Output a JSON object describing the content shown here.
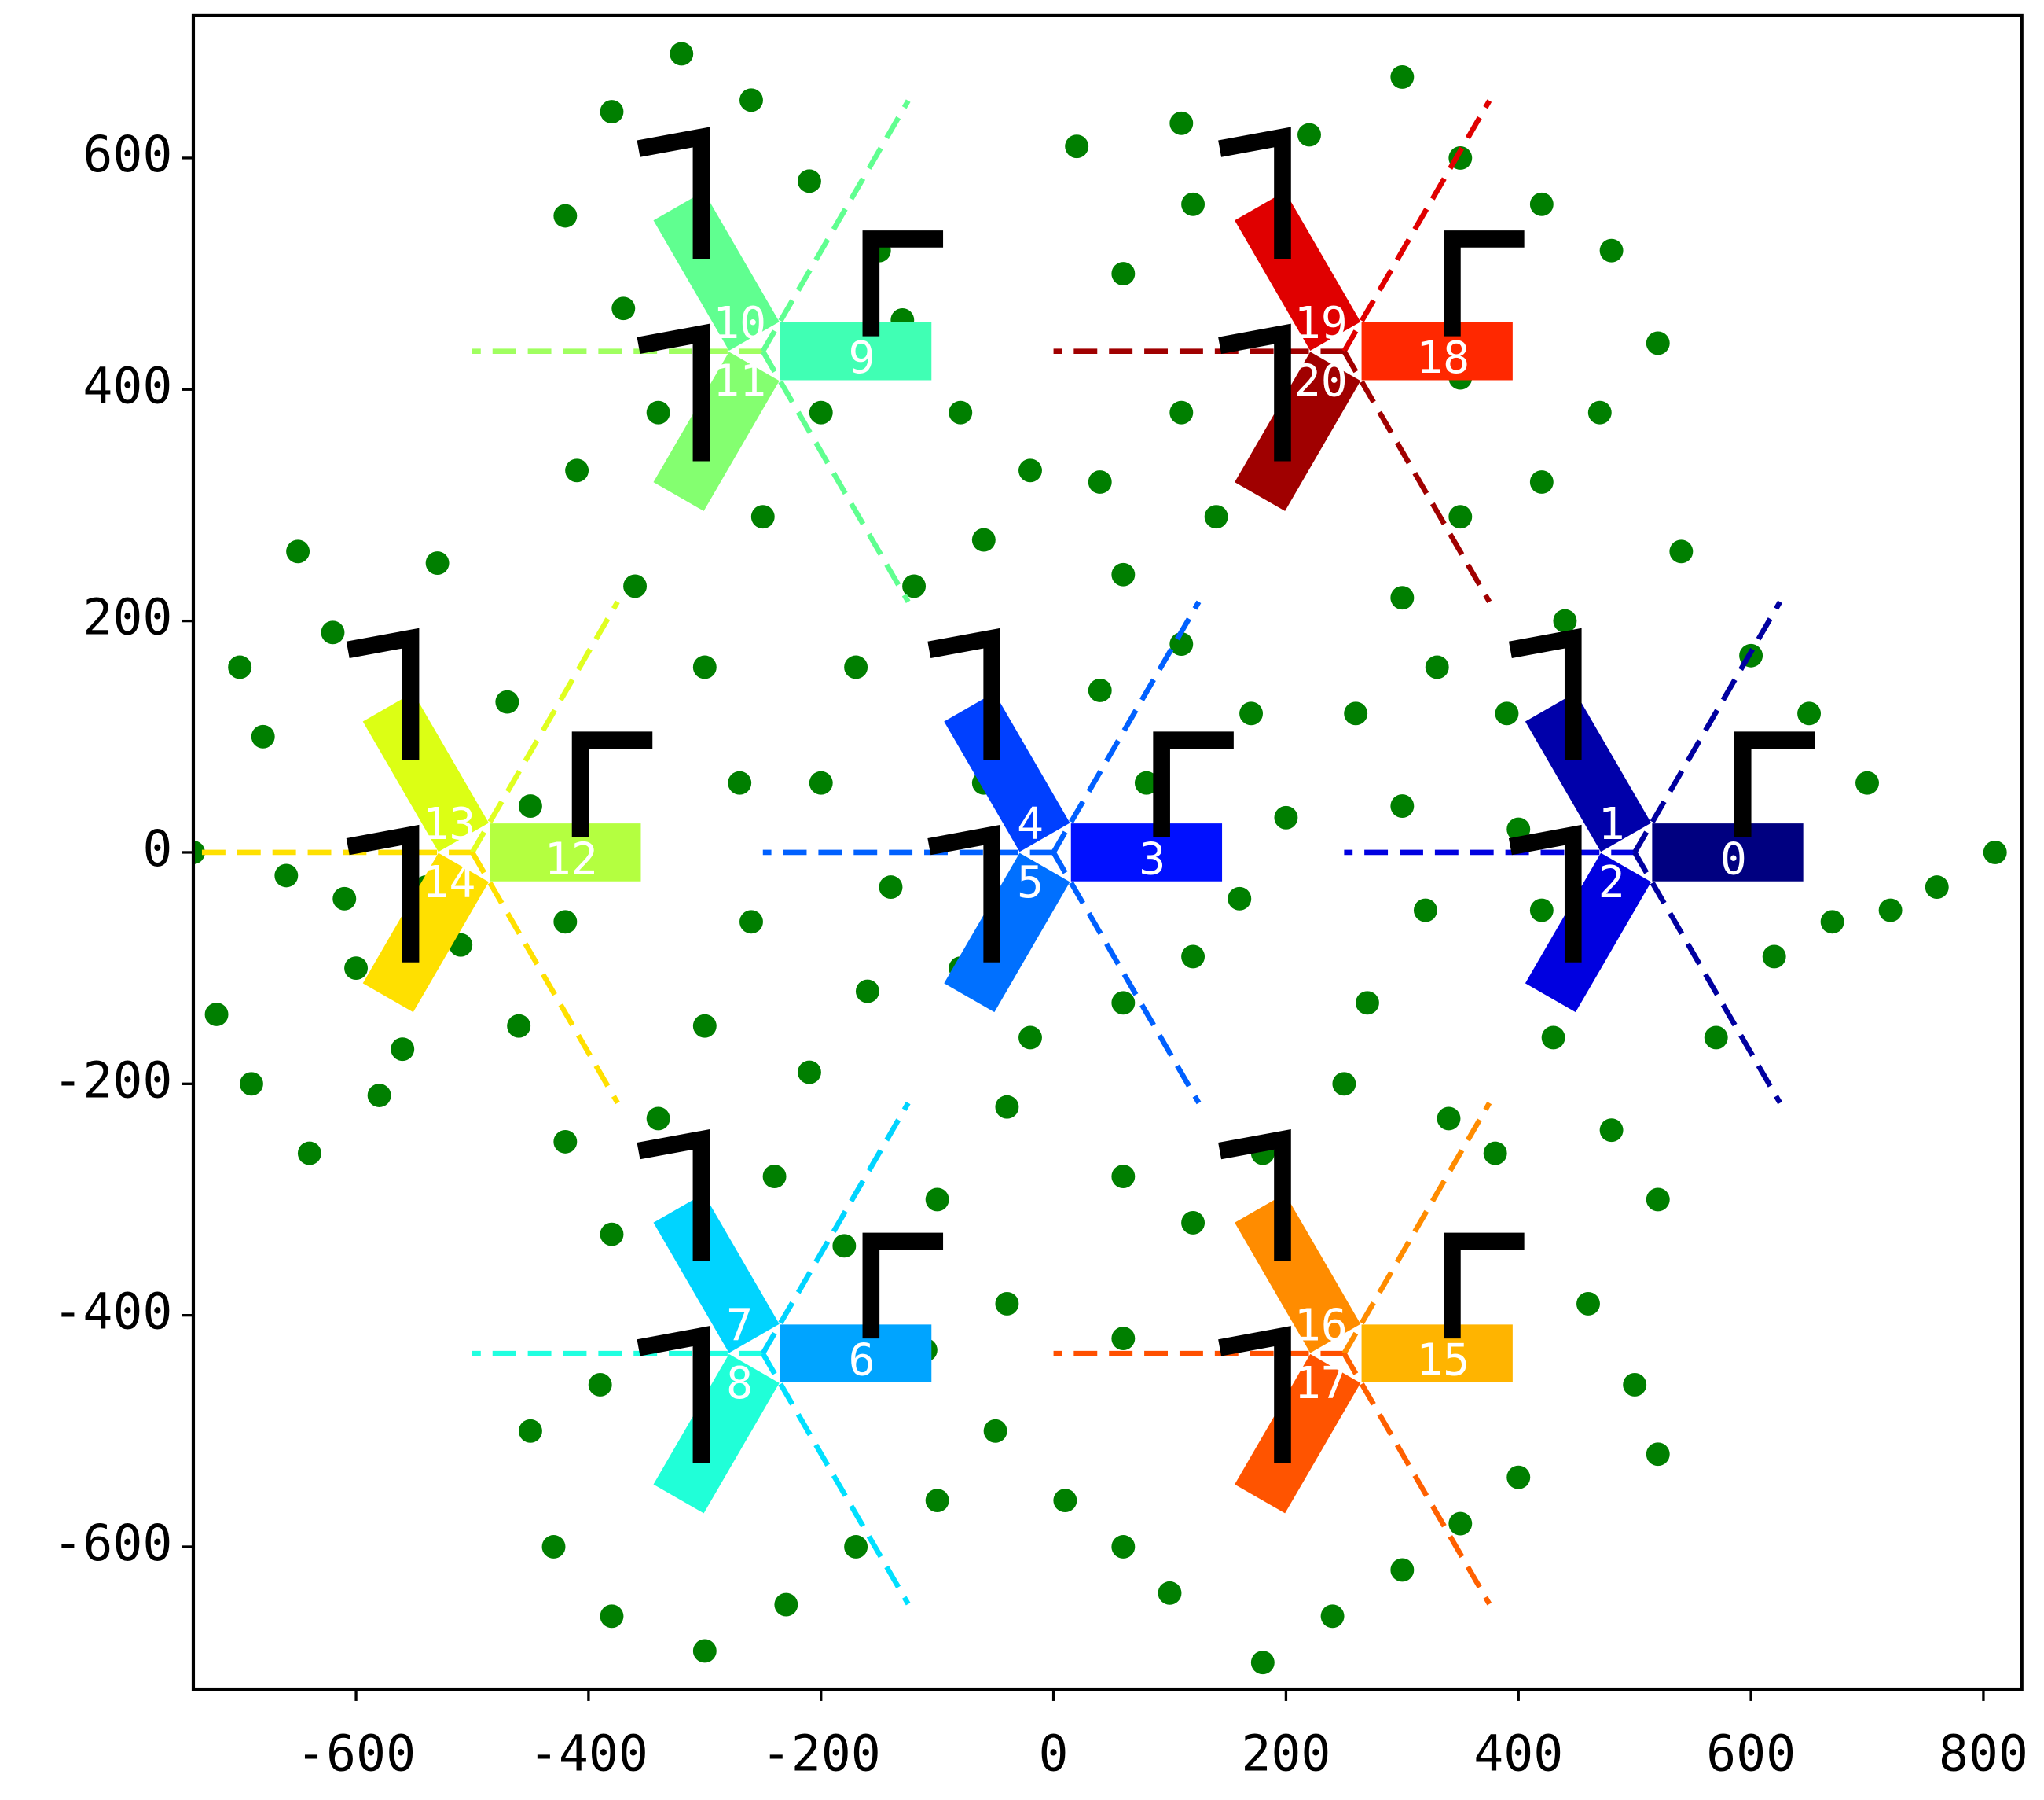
{
  "chart_data": {
    "type": "scatter",
    "xlim": [
      -740,
      833
    ],
    "ylim": [
      -723,
      723
    ],
    "xticks": [
      -600,
      -400,
      -200,
      0,
      200,
      400,
      600,
      800
    ],
    "yticks": [
      -600,
      -400,
      -200,
      0,
      200,
      400,
      600
    ],
    "points": {
      "color": "#007f00",
      "x": [
        -700,
        -680,
        -650,
        -620,
        -600,
        -690,
        -640,
        -580,
        -560,
        -610,
        -530,
        -470,
        -450,
        -420,
        -460,
        -420,
        -380,
        -340,
        -300,
        -260,
        -270,
        -300,
        -360,
        -410,
        -370,
        -420,
        -380,
        -320,
        -260,
        -210,
        -150,
        -130,
        -80,
        -20,
        -60,
        -120,
        -170,
        -200,
        -140,
        -160,
        -210,
        -240,
        -180,
        -100,
        -40,
        -20,
        60,
        120,
        160,
        200,
        170,
        110,
        60,
        40,
        110,
        60,
        120,
        20,
        110,
        220,
        300,
        350,
        420,
        480,
        520,
        470,
        420,
        350,
        300,
        330,
        260,
        300,
        320,
        270,
        250,
        340,
        380,
        430,
        480,
        520,
        570,
        620,
        670,
        720,
        760,
        810,
        700,
        650,
        600,
        540,
        440,
        390,
        420,
        460,
        500,
        520,
        400,
        350,
        300,
        240,
        180,
        100,
        60,
        10,
        -50,
        -100,
        -170,
        -230,
        -300,
        -380,
        -430,
        -450,
        -390,
        -110,
        -40,
        60,
        120,
        180,
        60,
        -60,
        -80,
        80,
        40,
        140,
        -250,
        -340,
        -200,
        400,
        350,
        -540,
        -510,
        -720,
        -740,
        -660
      ],
      "y": [
        160,
        100,
        260,
        190,
        -100,
        -200,
        -260,
        -210,
        -170,
        -40,
        250,
        130,
        40,
        -60,
        -150,
        -250,
        -330,
        -230,
        -150,
        -60,
        60,
        160,
        230,
        330,
        470,
        550,
        640,
        690,
        650,
        580,
        520,
        460,
        380,
        330,
        270,
        230,
        160,
        60,
        -30,
        -120,
        -190,
        -280,
        -340,
        -300,
        -220,
        -160,
        -130,
        -90,
        -40,
        30,
        120,
        180,
        240,
        320,
        380,
        500,
        560,
        610,
        630,
        620,
        670,
        600,
        560,
        520,
        440,
        380,
        320,
        290,
        220,
        160,
        120,
        40,
        -50,
        -130,
        -200,
        -230,
        -260,
        -160,
        -240,
        -300,
        -160,
        -90,
        -60,
        -50,
        -30,
        0,
        60,
        120,
        170,
        260,
        200,
        120,
        -50,
        -390,
        -460,
        -520,
        -540,
        -580,
        -620,
        -660,
        -700,
        -640,
        -600,
        -560,
        -500,
        -560,
        -600,
        -650,
        -690,
        -660,
        -600,
        -500,
        -460,
        -430,
        -390,
        -420,
        -320,
        -260,
        -280,
        60,
        -100,
        60,
        140,
        290,
        290,
        380,
        380,
        20,
        410,
        -30,
        -80,
        -140,
        0,
        -20
      ]
    },
    "sectors": [
      {
        "label": 0,
        "x": 500,
        "y": 0,
        "azimuth": 0,
        "color": "#000080"
      },
      {
        "label": 1,
        "x": 500,
        "y": 0,
        "azimuth": 120,
        "color": "#0000aa"
      },
      {
        "label": 2,
        "x": 500,
        "y": 0,
        "azimuth": 240,
        "color": "#0000e0"
      },
      {
        "label": 3,
        "x": 0,
        "y": 0,
        "azimuth": 0,
        "color": "#0010ff"
      },
      {
        "label": 4,
        "x": 0,
        "y": 0,
        "azimuth": 120,
        "color": "#0040ff"
      },
      {
        "label": 5,
        "x": 0,
        "y": 0,
        "azimuth": 240,
        "color": "#0070ff"
      },
      {
        "label": 6,
        "x": -250,
        "y": -433,
        "azimuth": 0,
        "color": "#00a4ff"
      },
      {
        "label": 7,
        "x": -250,
        "y": -433,
        "azimuth": 120,
        "color": "#00d4ff"
      },
      {
        "label": 8,
        "x": -250,
        "y": -433,
        "azimuth": 240,
        "color": "#20ffd8"
      },
      {
        "label": 9,
        "x": -250,
        "y": 433,
        "azimuth": 0,
        "color": "#40ffb4"
      },
      {
        "label": 10,
        "x": -250,
        "y": 433,
        "azimuth": 120,
        "color": "#60ff90"
      },
      {
        "label": 11,
        "x": -250,
        "y": 433,
        "azimuth": 240,
        "color": "#84ff70"
      },
      {
        "label": 12,
        "x": -500,
        "y": 0,
        "azimuth": 0,
        "color": "#b4ff40"
      },
      {
        "label": 13,
        "x": -500,
        "y": 0,
        "azimuth": 120,
        "color": "#dcff14"
      },
      {
        "label": 14,
        "x": -500,
        "y": 0,
        "azimuth": 240,
        "color": "#ffe000"
      },
      {
        "label": 15,
        "x": 250,
        "y": -433,
        "azimuth": 0,
        "color": "#ffb400"
      },
      {
        "label": 16,
        "x": 250,
        "y": -433,
        "azimuth": 120,
        "color": "#ff8c00"
      },
      {
        "label": 17,
        "x": 250,
        "y": -433,
        "azimuth": 240,
        "color": "#ff5400"
      },
      {
        "label": 18,
        "x": 250,
        "y": 433,
        "azimuth": 0,
        "color": "#ff2800"
      },
      {
        "label": 19,
        "x": 250,
        "y": 433,
        "azimuth": 120,
        "color": "#e00000"
      },
      {
        "label": 20,
        "x": 250,
        "y": 433,
        "azimuth": 240,
        "color": "#a00000"
      }
    ],
    "boundary_lines": [
      {
        "x": 500,
        "y": 0,
        "angle": 180,
        "color": "#0000e0"
      },
      {
        "x": 500,
        "y": 0,
        "angle": 60,
        "color": "#0000a0"
      },
      {
        "x": 500,
        "y": 0,
        "angle": 300,
        "color": "#0000a0"
      },
      {
        "x": 0,
        "y": 0,
        "angle": 180,
        "color": "#0060ff"
      },
      {
        "x": 0,
        "y": 0,
        "angle": 60,
        "color": "#0060ff"
      },
      {
        "x": 0,
        "y": 0,
        "angle": 300,
        "color": "#0060ff"
      },
      {
        "x": -250,
        "y": -433,
        "angle": 180,
        "color": "#20ffe0"
      },
      {
        "x": -250,
        "y": -433,
        "angle": 60,
        "color": "#00d4ff"
      },
      {
        "x": -250,
        "y": -433,
        "angle": 300,
        "color": "#00e0ff"
      },
      {
        "x": -250,
        "y": 433,
        "angle": 180,
        "color": "#a0ff60"
      },
      {
        "x": -250,
        "y": 433,
        "angle": 60,
        "color": "#60ff90"
      },
      {
        "x": -250,
        "y": 433,
        "angle": 300,
        "color": "#60ff90"
      },
      {
        "x": -500,
        "y": 0,
        "angle": 180,
        "color": "#ffe000"
      },
      {
        "x": -500,
        "y": 0,
        "angle": 60,
        "color": "#e0ff20"
      },
      {
        "x": -500,
        "y": 0,
        "angle": 300,
        "color": "#ffe000"
      },
      {
        "x": 250,
        "y": -433,
        "angle": 180,
        "color": "#ff5000"
      },
      {
        "x": 250,
        "y": -433,
        "angle": 60,
        "color": "#ff8c00"
      },
      {
        "x": 250,
        "y": -433,
        "angle": 300,
        "color": "#ff6000"
      },
      {
        "x": 250,
        "y": 433,
        "angle": 180,
        "color": "#a00000"
      },
      {
        "x": 250,
        "y": 433,
        "angle": 60,
        "color": "#e00000"
      },
      {
        "x": 250,
        "y": 433,
        "angle": 300,
        "color": "#a00000"
      }
    ]
  }
}
